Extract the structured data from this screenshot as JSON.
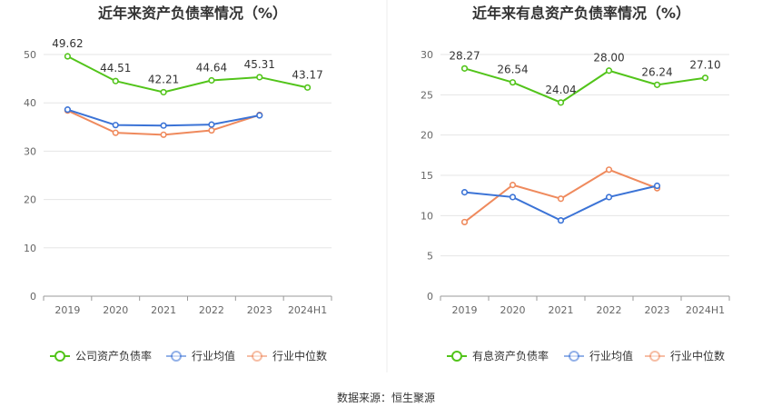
{
  "source_label": "数据来源：恒生聚源",
  "chart_data": [
    {
      "type": "line",
      "title": "近年来资产负债率情况（%）",
      "categories": [
        "2019",
        "2020",
        "2021",
        "2022",
        "2023",
        "2024H1"
      ],
      "ylim": [
        0,
        50
      ],
      "yticks": [
        0,
        10,
        20,
        30,
        40,
        50
      ],
      "grid": true,
      "legend_position": "bottom",
      "series": [
        {
          "name": "公司资产负债率",
          "color": "#52c41a",
          "values": [
            49.62,
            44.51,
            42.21,
            44.64,
            45.31,
            43.17
          ],
          "labels": [
            "49.62",
            "44.51",
            "42.21",
            "44.64",
            "45.31",
            "43.17"
          ]
        },
        {
          "name": "行业均值",
          "color": "#3b73d6",
          "values": [
            38.6,
            35.4,
            35.3,
            35.5,
            37.4,
            null
          ]
        },
        {
          "name": "行业中位数",
          "color": "#ef8a5d",
          "values": [
            38.4,
            33.8,
            33.4,
            34.3,
            37.5,
            null
          ]
        }
      ]
    },
    {
      "type": "line",
      "title": "近年来有息资产负债率情况（%）",
      "categories": [
        "2019",
        "2020",
        "2021",
        "2022",
        "2023",
        "2024H1"
      ],
      "ylim": [
        0,
        30
      ],
      "yticks": [
        0,
        5,
        10,
        15,
        20,
        25,
        30
      ],
      "grid": true,
      "legend_position": "bottom",
      "series": [
        {
          "name": "有息资产负债率",
          "color": "#52c41a",
          "values": [
            28.27,
            26.54,
            24.04,
            28.0,
            26.24,
            27.1
          ],
          "labels": [
            "28.27",
            "26.54",
            "24.04",
            "28.00",
            "26.24",
            "27.10"
          ]
        },
        {
          "name": "行业均值",
          "color": "#3b73d6",
          "values": [
            12.9,
            12.3,
            9.4,
            12.3,
            13.7,
            null
          ]
        },
        {
          "name": "行业中位数",
          "color": "#ef8a5d",
          "values": [
            9.2,
            13.8,
            12.1,
            15.7,
            13.4,
            null
          ]
        }
      ]
    }
  ]
}
